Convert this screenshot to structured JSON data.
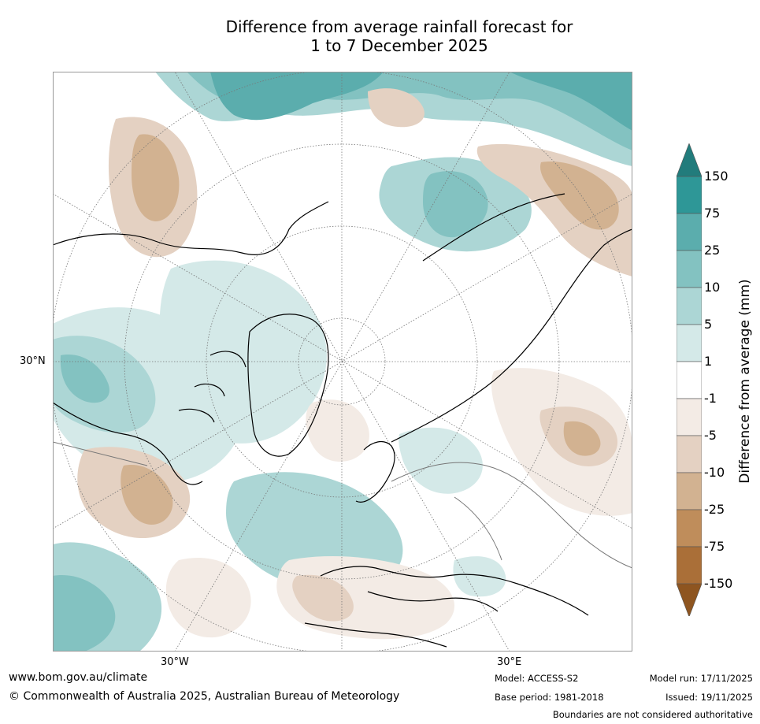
{
  "title": {
    "line1": "Difference from average rainfall forecast for",
    "line2": "1 to 7 December 2025"
  },
  "map": {
    "projection": "north-polar-stereographic",
    "labels": {
      "lat_30n": "30°N",
      "lon_30w": "30°W",
      "lon_30e": "30°E"
    }
  },
  "legend": {
    "title": "Difference from average (mm)",
    "ticks": [
      "150",
      "75",
      "25",
      "10",
      "5",
      "1",
      "-1",
      "-5",
      "-10",
      "-25",
      "-75",
      "-150"
    ],
    "colors": [
      "#227C7C",
      "#2E9797",
      "#5BADAD",
      "#83C2C1",
      "#ACD6D5",
      "#D4E9E8",
      "#FFFFFF",
      "#F3EBE5",
      "#E4D1C2",
      "#D2B291",
      "#BF8D5B",
      "#AA6F38",
      "#8E5520"
    ]
  },
  "footer": {
    "website": "www.bom.gov.au/climate",
    "copyright": "© Commonwealth of Australia 2025, Australian Bureau of Meteorology",
    "model": "Model: ACCESS-S2",
    "base_period": "Base period: 1981-2018",
    "model_run": "Model run: 17/11/2025",
    "issued": "Issued: 19/11/2025",
    "disclaimer": "Boundaries are not considered authoritative"
  }
}
